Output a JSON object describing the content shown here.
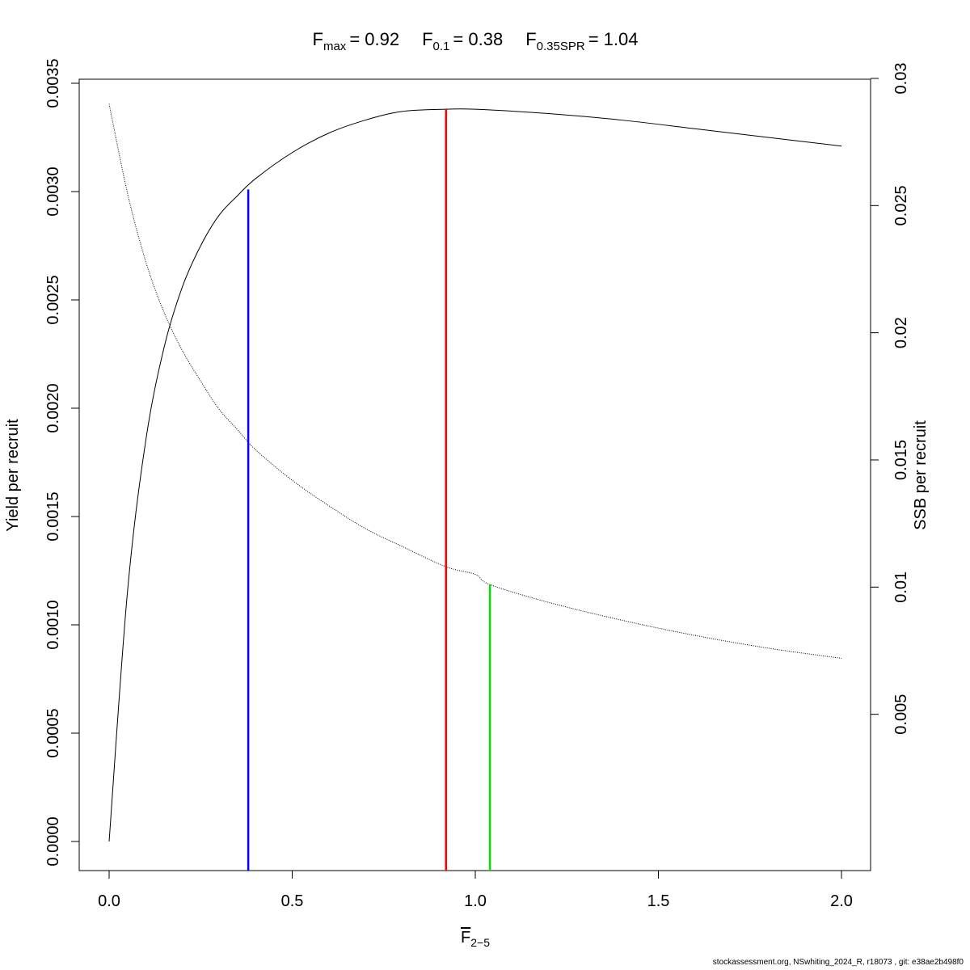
{
  "chart_data": {
    "type": "line",
    "title": {
      "fmax": {
        "sym": "F",
        "sub": "max",
        "val": "= 0.92"
      },
      "f01": {
        "sym": "F",
        "sub": "0.1",
        "val": "= 0.38"
      },
      "f035": {
        "sym": "F",
        "sub": "0.35SPR",
        "val": "= 1.04"
      }
    },
    "xlabel": {
      "sym": "F",
      "sub": "2−5"
    },
    "ylabel_left": "Yield per recruit",
    "ylabel_right": "SSB per recruit",
    "xlim": [
      0,
      2
    ],
    "ylim_left": [
      0,
      0.0035
    ],
    "ylim_right": [
      0,
      0.03
    ],
    "x_ticks": [
      "0.0",
      "0.5",
      "1.0",
      "1.5",
      "2.0"
    ],
    "y_left_ticks": [
      "0.0000",
      "0.0005",
      "0.0010",
      "0.0015",
      "0.0020",
      "0.0025",
      "0.0030",
      "0.0035"
    ],
    "y_right_ticks": [
      "0.005",
      "0.01",
      "0.015",
      "0.02",
      "0.025",
      "0.03"
    ],
    "series": [
      {
        "axis": "left",
        "style": "solid",
        "color": "#000000",
        "x": [
          0,
          0.05,
          0.1,
          0.15,
          0.2,
          0.25,
          0.3,
          0.35,
          0.4,
          0.5,
          0.6,
          0.7,
          0.8,
          0.92,
          1.0,
          1.2,
          1.4,
          1.6,
          1.8,
          2.0
        ],
        "y": [
          0,
          0.00115,
          0.00185,
          0.00228,
          0.00256,
          0.00275,
          0.00289,
          0.00298,
          0.00306,
          0.00318,
          0.00327,
          0.00333,
          0.00337,
          0.00338,
          0.00338,
          0.00336,
          0.00333,
          0.00329,
          0.00325,
          0.00321
        ]
      },
      {
        "axis": "right",
        "style": "dotted",
        "color": "#000000",
        "x": [
          0,
          0.05,
          0.1,
          0.15,
          0.2,
          0.25,
          0.3,
          0.35,
          0.4,
          0.5,
          0.6,
          0.7,
          0.8,
          0.92,
          1.0,
          1.04,
          1.2,
          1.4,
          1.6,
          1.8,
          2.0
        ],
        "y": [
          0.029,
          0.0255,
          0.0228,
          0.0208,
          0.0193,
          0.0181,
          0.017,
          0.0162,
          0.0154,
          0.0142,
          0.0132,
          0.0123,
          0.0116,
          0.0108,
          0.0105,
          0.0101,
          0.0094,
          0.0087,
          0.0081,
          0.0076,
          0.0072
        ]
      }
    ],
    "reference_lines": [
      {
        "name": "F0.1",
        "x": 0.38,
        "axis": "left",
        "y_top": 0.00301,
        "color": "#0000ff"
      },
      {
        "name": "Fmax",
        "x": 0.92,
        "axis": "left",
        "y_top": 0.00338,
        "color": "#ff0000"
      },
      {
        "name": "F0.35SPR",
        "x": 1.04,
        "axis": "right",
        "y_top": 0.0101,
        "color": "#00dd00"
      }
    ]
  },
  "footer": "stockassessment.org, NSwhiting_2024_R, r18073 , git: e38ae2b498f0"
}
